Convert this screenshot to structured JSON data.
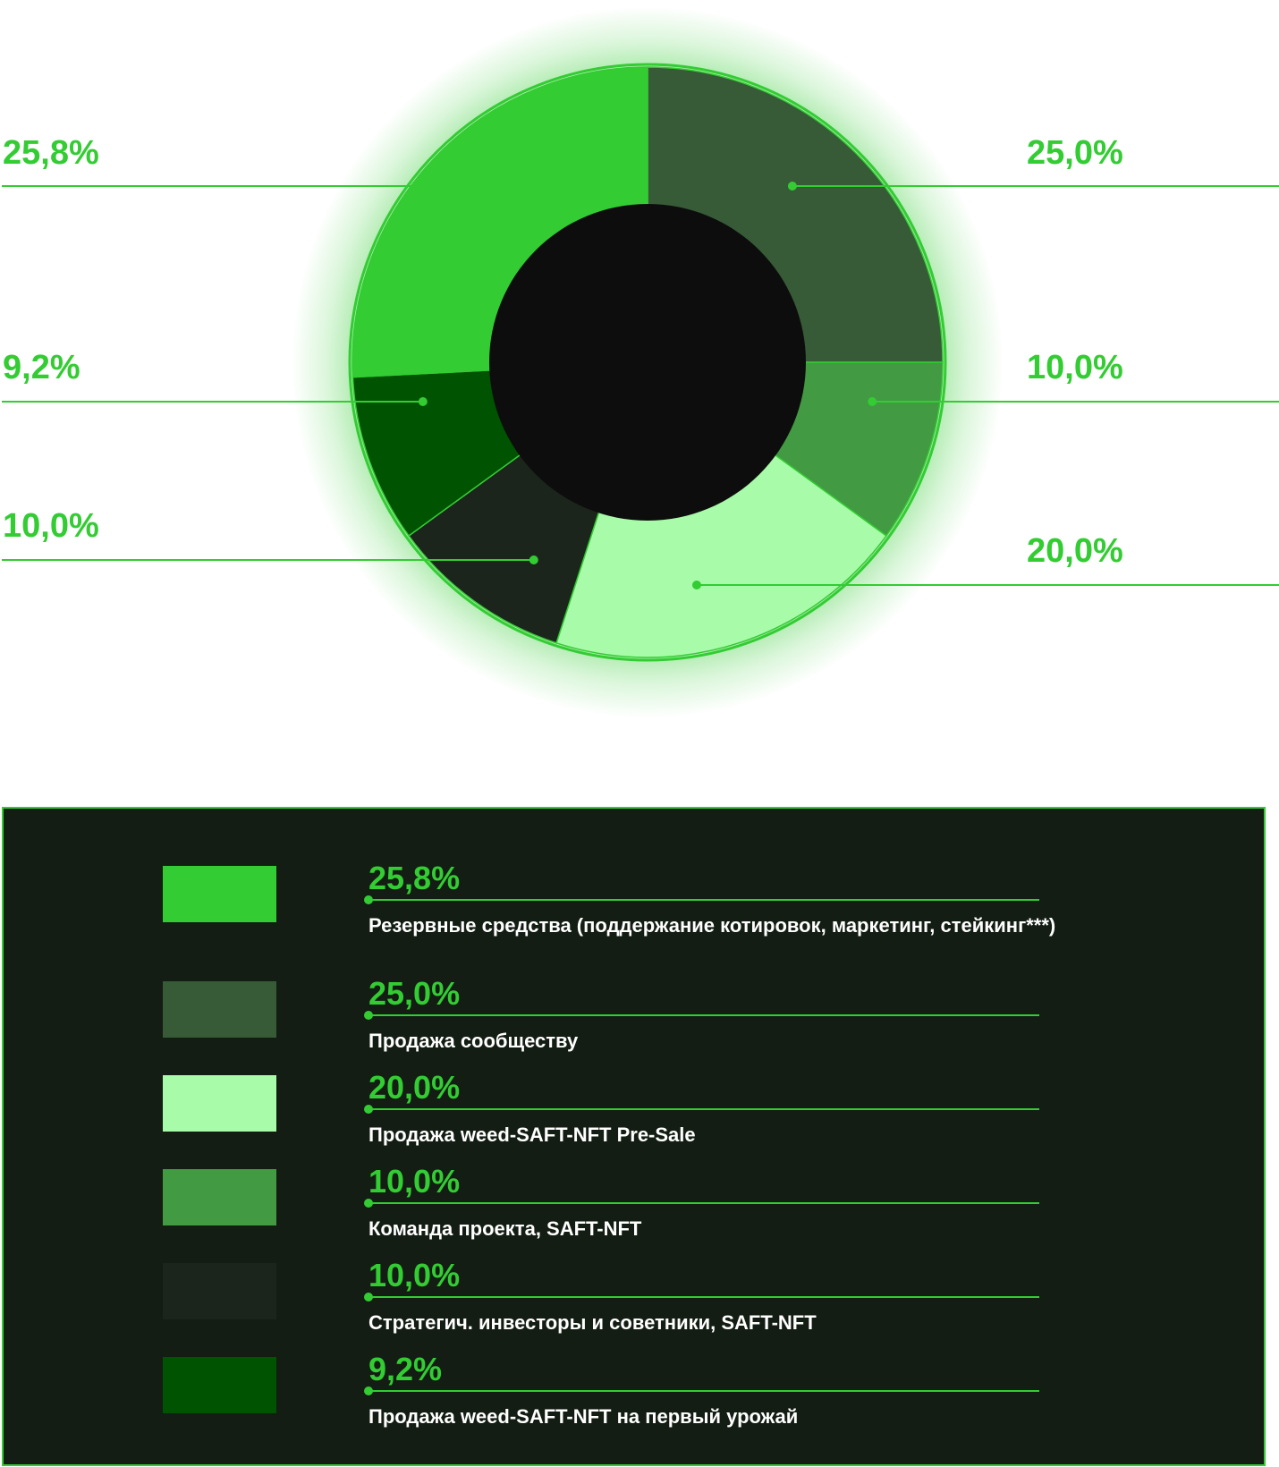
{
  "chart_data": {
    "type": "pie",
    "variant": "donut",
    "colors_note": "slice colors by category",
    "slices": [
      {
        "value": 25.0,
        "label": "25,0%",
        "name": "Продажа сообществу",
        "color": "#375a37"
      },
      {
        "value": 10.0,
        "label": "10,0%",
        "name": "Команда проекта, SAFT-NFT",
        "color": "#429a42"
      },
      {
        "value": 20.0,
        "label": "20,0%",
        "name": "Продажа weed-SAFT-NFT Pre-Sale",
        "color": "#a8fba8"
      },
      {
        "value": 10.0,
        "label": "10,0%",
        "name": "Стратегич. инвесторы и советники, SAFT-NFT",
        "color": "#1c251c"
      },
      {
        "value": 9.2,
        "label": "9,2%",
        "name": "Продажа weed-SAFT-NFT на первый урожай",
        "color": "#005300"
      },
      {
        "value": 25.8,
        "label": "25,8%",
        "name": "Резервные средства (поддержание котировок, маркетинг, стейкинг***)",
        "color": "#33cc33"
      }
    ],
    "start_angle": "12 o'clock, clockwise",
    "legend_placement": "bottom"
  },
  "legend": {
    "items": [
      {
        "pct": "25,8%",
        "label": "Резервные средства (поддержание котировок, маркетинг, стейкинг***)",
        "color": "#33cc33"
      },
      {
        "pct": "25,0%",
        "label": "Продажа сообществу",
        "color": "#375a37"
      },
      {
        "pct": "20,0%",
        "label": "Продажа weed-SAFT-NFT Pre-Sale",
        "color": "#a8fba8"
      },
      {
        "pct": "10,0%",
        "label": "Команда проекта, SAFT-NFT",
        "color": "#429a42"
      },
      {
        "pct": "10,0%",
        "label": "Стратегич. инвесторы и советники, SAFT-NFT",
        "color": "#1c251c"
      },
      {
        "pct": "9,2%",
        "label": "Продажа weed-SAFT-NFT на первый урожай",
        "color": "#005300"
      }
    ]
  },
  "colors": {
    "accent": "#33cc33",
    "panel_bg": "#131d13",
    "donut_hole": "#0d0d0d"
  }
}
